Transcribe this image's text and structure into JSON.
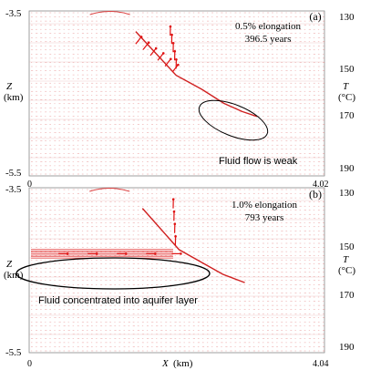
{
  "chart_data": [
    {
      "type": "scatter",
      "panel": "(a)",
      "annotation_title": "0.5% elongation",
      "annotation_time": "396.5 years",
      "callout": "Fluid flow is weak",
      "xlabel": "",
      "ylabel": "Z",
      "ylabel_unit": "(km)",
      "y2label": "T",
      "y2label_unit": "(°C)",
      "xlim": [
        0,
        4.02
      ],
      "ylim": [
        -5.5,
        -3.5
      ],
      "x_ticks": [
        "0",
        "4.02"
      ],
      "y_ticks": [
        "-3.5",
        "-5.5"
      ],
      "t_ticks": [
        "130",
        "150",
        "170",
        "190"
      ],
      "fault": {
        "x": [
          1.45,
          2.0,
          2.35,
          2.65,
          2.9,
          3.1
        ],
        "y": [
          -3.75,
          -4.28,
          -4.45,
          -4.62,
          -4.72,
          -4.78
        ]
      },
      "arrow_clusters": [
        {
          "x": [
            1.45,
            1.55,
            1.65,
            1.75,
            1.85,
            1.95
          ],
          "y": [
            -3.9,
            -3.97,
            -4.04,
            -4.1,
            -4.17,
            -4.24
          ]
        },
        {
          "x": [
            2.0,
            1.98,
            1.96,
            1.94,
            1.92
          ],
          "y": [
            -4.2,
            -4.1,
            -4.0,
            -3.9,
            -3.8
          ]
        }
      ]
    },
    {
      "type": "scatter",
      "panel": "(b)",
      "annotation_title": "1.0% elongation",
      "annotation_time": "793 years",
      "callout": "Fluid concentrated into aquifer layer",
      "xlabel": "X",
      "xlabel_unit": "(km)",
      "ylabel": "Z",
      "ylabel_unit": "(km)",
      "y2label": "T",
      "y2label_unit": "(°C)",
      "xlim": [
        0,
        4.04
      ],
      "ylim": [
        -5.5,
        -3.5
      ],
      "x_ticks": [
        "0",
        "4.04"
      ],
      "y_ticks": [
        "-3.5",
        "-5.5"
      ],
      "t_ticks": [
        "130",
        "150",
        "170",
        "190"
      ],
      "fault": {
        "x": [
          1.55,
          2.05,
          2.35,
          2.65,
          2.95
        ],
        "y": [
          -3.75,
          -4.25,
          -4.4,
          -4.55,
          -4.65
        ]
      },
      "arrow_clusters": [
        {
          "x": [
            0.4,
            0.8,
            1.2,
            1.6,
            1.95
          ],
          "y": [
            -4.3,
            -4.3,
            -4.3,
            -4.3,
            -4.3
          ]
        },
        {
          "x": [
            2.0,
            1.99,
            1.98,
            1.97
          ],
          "y": [
            -4.2,
            -4.05,
            -3.9,
            -3.75
          ]
        }
      ]
    }
  ]
}
